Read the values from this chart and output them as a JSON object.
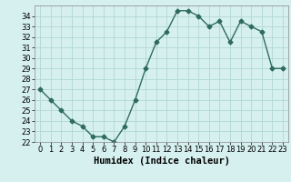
{
  "x": [
    0,
    1,
    2,
    3,
    4,
    5,
    6,
    7,
    8,
    9,
    10,
    11,
    12,
    13,
    14,
    15,
    16,
    17,
    18,
    19,
    20,
    21,
    22,
    23
  ],
  "y": [
    27,
    26,
    25,
    24,
    23.5,
    22.5,
    22.5,
    22,
    23.5,
    26,
    29,
    31.5,
    32.5,
    34.5,
    34.5,
    34,
    33,
    33.5,
    31.5,
    33.5,
    33,
    32.5,
    29,
    29
  ],
  "line_color": "#2e6b5e",
  "marker": "D",
  "marker_size": 2.5,
  "bg_color": "#d6f0ef",
  "grid_color": "#b0d8d4",
  "xlabel": "Humidex (Indice chaleur)",
  "xlim": [
    -0.5,
    23.5
  ],
  "ylim": [
    22,
    35
  ],
  "yticks": [
    22,
    23,
    24,
    25,
    26,
    27,
    28,
    29,
    30,
    31,
    32,
    33,
    34
  ],
  "xticks": [
    0,
    1,
    2,
    3,
    4,
    5,
    6,
    7,
    8,
    9,
    10,
    11,
    12,
    13,
    14,
    15,
    16,
    17,
    18,
    19,
    20,
    21,
    22,
    23
  ],
  "tick_label_fontsize": 6,
  "xlabel_fontsize": 7.5,
  "line_width": 1.0
}
